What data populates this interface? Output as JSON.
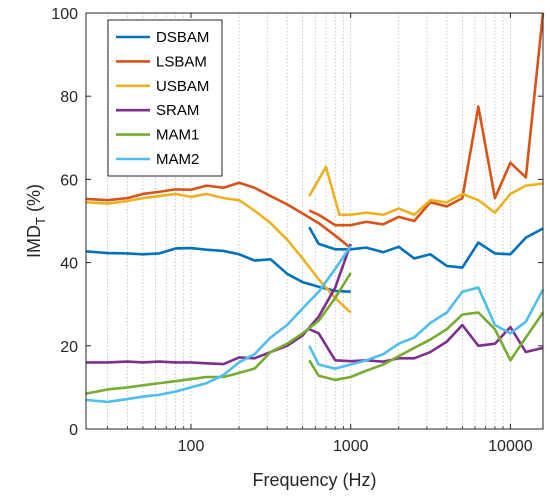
{
  "chart_data": {
    "type": "line",
    "xlabel": "Frequency (Hz)",
    "ylabel": "IMD",
    "ylabel_subscript": "T",
    "ylabel_unit": " (%)",
    "x_scale": "log",
    "xlim": [
      22,
      16000
    ],
    "ylim": [
      0,
      100
    ],
    "x_ticks": [
      100,
      1000,
      10000
    ],
    "x_tick_labels": [
      "100",
      "1000",
      "10000"
    ],
    "y_ticks": [
      0,
      20,
      40,
      60,
      80,
      100
    ],
    "y_tick_labels": [
      "0",
      "20",
      "40",
      "60",
      "80",
      "100"
    ],
    "grid": "vertical-minor-dotted",
    "legend_position": "top-left",
    "series": [
      {
        "name": "DSBAM",
        "color": "#0072BD",
        "segments": [
          [
            [
              22,
              42.7
            ],
            [
              30,
              42.3
            ],
            [
              40,
              42.2
            ],
            [
              50,
              42.0
            ],
            [
              63,
              42.2
            ],
            [
              80,
              43.4
            ],
            [
              100,
              43.5
            ],
            [
              125,
              43.1
            ],
            [
              160,
              42.8
            ],
            [
              200,
              42.0
            ],
            [
              250,
              40.5
            ],
            [
              315,
              40.8
            ],
            [
              400,
              37.3
            ],
            [
              500,
              35.3
            ],
            [
              630,
              34.2
            ],
            [
              800,
              33.2
            ],
            [
              1000,
              33.0
            ]
          ],
          [
            [
              550,
              48.5
            ],
            [
              630,
              44.5
            ],
            [
              800,
              43.2
            ],
            [
              1000,
              43.2
            ],
            [
              1250,
              43.6
            ],
            [
              1600,
              42.5
            ],
            [
              2000,
              43.8
            ],
            [
              2500,
              41.0
            ],
            [
              3150,
              42.0
            ],
            [
              4000,
              39.2
            ],
            [
              5000,
              38.8
            ],
            [
              6300,
              44.8
            ],
            [
              8000,
              42.2
            ],
            [
              10000,
              42.0
            ],
            [
              12500,
              46.0
            ],
            [
              16000,
              48.2
            ]
          ]
        ]
      },
      {
        "name": "LSBAM",
        "color": "#D95319",
        "segments": [
          [
            [
              22,
              55.3
            ],
            [
              30,
              55.0
            ],
            [
              40,
              55.5
            ],
            [
              50,
              56.5
            ],
            [
              63,
              57.0
            ],
            [
              80,
              57.6
            ],
            [
              100,
              57.5
            ],
            [
              125,
              58.5
            ],
            [
              160,
              58.0
            ],
            [
              200,
              59.2
            ],
            [
              250,
              58.0
            ],
            [
              315,
              56.0
            ],
            [
              400,
              54.0
            ],
            [
              500,
              51.8
            ],
            [
              630,
              49.5
            ],
            [
              800,
              46.5
            ],
            [
              1000,
              43.5
            ]
          ],
          [
            [
              550,
              52.5
            ],
            [
              630,
              51.5
            ],
            [
              800,
              49.0
            ],
            [
              1000,
              49.0
            ],
            [
              1250,
              49.8
            ],
            [
              1600,
              49.2
            ],
            [
              2000,
              51.0
            ],
            [
              2500,
              50.0
            ],
            [
              3150,
              54.5
            ],
            [
              4000,
              53.5
            ],
            [
              5000,
              55.5
            ],
            [
              6300,
              77.5
            ],
            [
              8000,
              55.5
            ],
            [
              10000,
              64.0
            ],
            [
              12500,
              60.5
            ],
            [
              16000,
              100
            ]
          ]
        ]
      },
      {
        "name": "USBAM",
        "color": "#EDB120",
        "segments": [
          [
            [
              22,
              54.5
            ],
            [
              30,
              54.2
            ],
            [
              40,
              54.8
            ],
            [
              50,
              55.5
            ],
            [
              63,
              56.0
            ],
            [
              80,
              56.5
            ],
            [
              100,
              55.8
            ],
            [
              125,
              56.5
            ],
            [
              160,
              55.5
            ],
            [
              200,
              55.0
            ],
            [
              250,
              52.5
            ],
            [
              315,
              49.5
            ],
            [
              400,
              45.5
            ],
            [
              500,
              41.0
            ],
            [
              630,
              36.0
            ],
            [
              800,
              31.5
            ],
            [
              1000,
              28.0
            ]
          ],
          [
            [
              550,
              56.0
            ],
            [
              700,
              63.0
            ],
            [
              850,
              51.5
            ],
            [
              1000,
              51.5
            ],
            [
              1250,
              52.0
            ],
            [
              1600,
              51.5
            ],
            [
              2000,
              53.0
            ],
            [
              2500,
              51.5
            ],
            [
              3150,
              55.0
            ],
            [
              4000,
              54.5
            ],
            [
              5000,
              56.5
            ],
            [
              6300,
              55.0
            ],
            [
              8000,
              52.0
            ],
            [
              10000,
              56.5
            ],
            [
              12500,
              58.5
            ],
            [
              16000,
              59.0
            ]
          ]
        ]
      },
      {
        "name": "SRAM",
        "color": "#7E2F8E",
        "segments": [
          [
            [
              22,
              16.0
            ],
            [
              30,
              16.0
            ],
            [
              40,
              16.2
            ],
            [
              50,
              16.0
            ],
            [
              63,
              16.2
            ],
            [
              80,
              16.0
            ],
            [
              100,
              16.0
            ],
            [
              125,
              15.8
            ],
            [
              160,
              15.6
            ],
            [
              200,
              17.2
            ],
            [
              250,
              17.0
            ],
            [
              315,
              18.5
            ],
            [
              400,
              20.0
            ],
            [
              500,
              22.5
            ],
            [
              630,
              27.0
            ],
            [
              800,
              34.0
            ],
            [
              1000,
              44.5
            ]
          ],
          [
            [
              550,
              24.0
            ],
            [
              630,
              23.0
            ],
            [
              800,
              16.5
            ],
            [
              1000,
              16.3
            ],
            [
              1250,
              16.5
            ],
            [
              1600,
              16.2
            ],
            [
              2000,
              17.0
            ],
            [
              2500,
              17.0
            ],
            [
              3150,
              18.5
            ],
            [
              4000,
              21.0
            ],
            [
              5000,
              25.0
            ],
            [
              6300,
              20.0
            ],
            [
              8000,
              20.5
            ],
            [
              10000,
              24.5
            ],
            [
              12500,
              18.5
            ],
            [
              16000,
              19.5
            ]
          ]
        ]
      },
      {
        "name": "MAM1",
        "color": "#77AC30",
        "segments": [
          [
            [
              22,
              8.5
            ],
            [
              30,
              9.5
            ],
            [
              40,
              10.0
            ],
            [
              50,
              10.5
            ],
            [
              63,
              11.0
            ],
            [
              80,
              11.5
            ],
            [
              100,
              12.0
            ],
            [
              125,
              12.5
            ],
            [
              160,
              12.5
            ],
            [
              200,
              13.5
            ],
            [
              250,
              14.5
            ],
            [
              315,
              18.5
            ],
            [
              400,
              20.5
            ],
            [
              500,
              23.0
            ],
            [
              630,
              26.0
            ],
            [
              800,
              31.5
            ],
            [
              1000,
              37.5
            ]
          ],
          [
            [
              550,
              16.5
            ],
            [
              630,
              12.8
            ],
            [
              800,
              11.8
            ],
            [
              1000,
              12.5
            ],
            [
              1250,
              14.0
            ],
            [
              1600,
              15.5
            ],
            [
              2000,
              17.5
            ],
            [
              2500,
              19.5
            ],
            [
              3150,
              21.5
            ],
            [
              4000,
              24.0
            ],
            [
              5000,
              27.5
            ],
            [
              6300,
              28.0
            ],
            [
              8000,
              24.0
            ],
            [
              10000,
              16.5
            ],
            [
              12500,
              22.0
            ],
            [
              16000,
              28.0
            ]
          ]
        ]
      },
      {
        "name": "MAM2",
        "color": "#4DBEEE",
        "segments": [
          [
            [
              22,
              7.0
            ],
            [
              30,
              6.5
            ],
            [
              40,
              7.2
            ],
            [
              50,
              7.8
            ],
            [
              63,
              8.2
            ],
            [
              80,
              9.0
            ],
            [
              100,
              10.0
            ],
            [
              125,
              11.0
            ],
            [
              160,
              13.0
            ],
            [
              200,
              16.0
            ],
            [
              250,
              18.0
            ],
            [
              315,
              22.0
            ],
            [
              400,
              25.0
            ],
            [
              500,
              29.0
            ],
            [
              630,
              33.0
            ],
            [
              800,
              38.5
            ],
            [
              1000,
              44.0
            ]
          ],
          [
            [
              550,
              20.0
            ],
            [
              630,
              15.5
            ],
            [
              800,
              14.5
            ],
            [
              1000,
              15.5
            ],
            [
              1250,
              16.5
            ],
            [
              1600,
              18.0
            ],
            [
              2000,
              20.5
            ],
            [
              2500,
              22.0
            ],
            [
              3150,
              25.5
            ],
            [
              4000,
              28.0
            ],
            [
              5000,
              33.0
            ],
            [
              6300,
              34.0
            ],
            [
              8000,
              25.0
            ],
            [
              10000,
              23.0
            ],
            [
              12500,
              25.8
            ],
            [
              16000,
              33.5
            ]
          ]
        ]
      }
    ]
  }
}
